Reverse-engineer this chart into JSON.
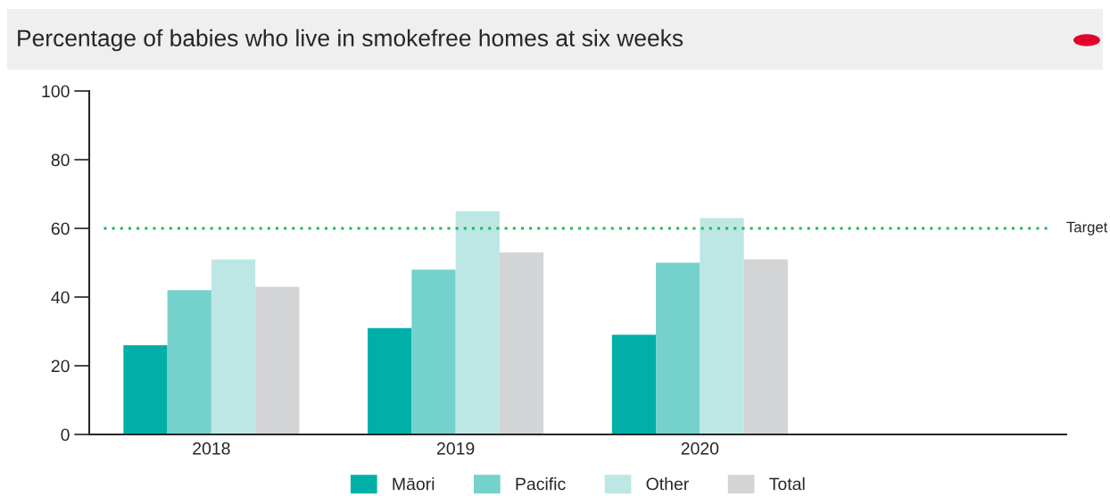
{
  "chart_data": {
    "type": "bar",
    "title": "Percentage of babies who live in smokefree homes at six weeks",
    "categories": [
      "2018",
      "2019",
      "2020",
      null
    ],
    "series": [
      {
        "name": "Māori",
        "color": "#00b0a8",
        "values": [
          26,
          31,
          29,
          null
        ]
      },
      {
        "name": "Pacific",
        "color": "#74d1cb",
        "values": [
          42,
          48,
          50,
          null
        ]
      },
      {
        "name": "Other",
        "color": "#bce7e4",
        "values": [
          51,
          65,
          63,
          null
        ]
      },
      {
        "name": "Total",
        "color": "#d3d4d6",
        "values": [
          43,
          53,
          51,
          null
        ]
      }
    ],
    "ylim": [
      0,
      100
    ],
    "yticks": [
      0,
      20,
      40,
      60,
      80,
      100
    ],
    "grid": false,
    "legend": "bottom",
    "ref_lines": [
      {
        "axis": "y",
        "value": 60,
        "label": "Target",
        "color": "#1db954",
        "line_style": "dotted"
      }
    ]
  }
}
